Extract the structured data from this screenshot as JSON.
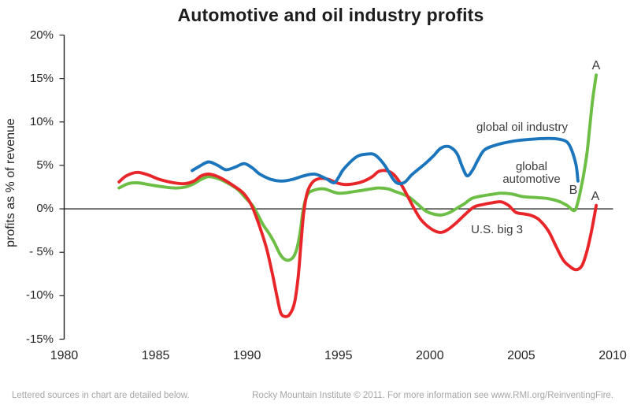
{
  "chart_data": {
    "type": "line",
    "title": "Automotive and oil industry profits",
    "ylabel": "profits as % of revenue",
    "xlabel": "",
    "xlim": [
      1980,
      2010
    ],
    "ylim": [
      -15,
      20
    ],
    "grid": false,
    "legend": "inline-labels",
    "zero_line": true,
    "axis_color": "#231f20",
    "zero_line_color": "#000000",
    "yticks": {
      "values": [
        20,
        15,
        10,
        5,
        0,
        -5,
        -10,
        -15
      ],
      "labels": [
        "20%",
        "15%",
        "10%",
        "5%",
        "0%",
        "- 5%",
        "-10%",
        "-15%"
      ]
    },
    "xticks": {
      "values": [
        1980,
        1985,
        1990,
        1995,
        2000,
        2005,
        2010
      ],
      "labels": [
        "1980",
        "1985",
        "1990",
        "1995",
        "2000",
        "2005",
        "2010"
      ]
    },
    "series": [
      {
        "id": "global-automotive",
        "name": "global automotive",
        "color": "#6cbe45",
        "points": [
          [
            1983.0,
            2.4
          ],
          [
            1983.5,
            2.9
          ],
          [
            1984.0,
            3.0
          ],
          [
            1984.6,
            2.8
          ],
          [
            1985.2,
            2.6
          ],
          [
            1986.0,
            2.4
          ],
          [
            1986.6,
            2.5
          ],
          [
            1987.1,
            2.9
          ],
          [
            1987.5,
            3.4
          ],
          [
            1987.9,
            3.7
          ],
          [
            1988.4,
            3.5
          ],
          [
            1989.0,
            2.9
          ],
          [
            1989.5,
            2.2
          ],
          [
            1989.9,
            1.3
          ],
          [
            1990.3,
            0.4
          ],
          [
            1990.6,
            -0.7
          ],
          [
            1990.9,
            -1.9
          ],
          [
            1991.2,
            -2.8
          ],
          [
            1991.5,
            -3.9
          ],
          [
            1991.8,
            -5.2
          ],
          [
            1992.05,
            -5.8
          ],
          [
            1992.3,
            -5.9
          ],
          [
            1992.55,
            -5.5
          ],
          [
            1992.75,
            -4.4
          ],
          [
            1992.92,
            -2.5
          ],
          [
            1993.08,
            0.0
          ],
          [
            1993.3,
            1.6
          ],
          [
            1993.6,
            2.1
          ],
          [
            1994.2,
            2.3
          ],
          [
            1995.0,
            1.8
          ],
          [
            1995.9,
            2.0
          ],
          [
            1996.8,
            2.3
          ],
          [
            1997.2,
            2.4
          ],
          [
            1997.7,
            2.3
          ],
          [
            1998.1,
            2.0
          ],
          [
            1998.5,
            1.7
          ],
          [
            1998.9,
            1.3
          ],
          [
            1999.3,
            0.6
          ],
          [
            1999.75,
            -0.2
          ],
          [
            2000.2,
            -0.6
          ],
          [
            2000.65,
            -0.7
          ],
          [
            2001.1,
            -0.4
          ],
          [
            2001.5,
            0.1
          ],
          [
            2001.9,
            0.6
          ],
          [
            2002.3,
            1.2
          ],
          [
            2002.9,
            1.5
          ],
          [
            2003.5,
            1.7
          ],
          [
            2003.9,
            1.8
          ],
          [
            2004.5,
            1.7
          ],
          [
            2005.1,
            1.4
          ],
          [
            2005.8,
            1.3
          ],
          [
            2006.4,
            1.2
          ],
          [
            2007.0,
            0.9
          ],
          [
            2007.5,
            0.4
          ],
          [
            2007.9,
            -0.2
          ],
          [
            2008.1,
            0.8
          ],
          [
            2008.3,
            2.7
          ],
          [
            2008.45,
            4.4
          ],
          [
            2008.6,
            6.5
          ],
          [
            2008.75,
            9.5
          ],
          [
            2008.9,
            12.5
          ],
          [
            2009.05,
            14.7
          ],
          [
            2009.1,
            15.4
          ]
        ]
      },
      {
        "id": "us-big-3",
        "name": "U.S. big 3",
        "color": "#e82529",
        "points": [
          [
            1983.0,
            3.1
          ],
          [
            1983.4,
            3.8
          ],
          [
            1984.0,
            4.2
          ],
          [
            1984.6,
            3.9
          ],
          [
            1985.2,
            3.4
          ],
          [
            1986.0,
            3.0
          ],
          [
            1986.6,
            2.9
          ],
          [
            1987.1,
            3.2
          ],
          [
            1987.5,
            3.8
          ],
          [
            1987.9,
            4.0
          ],
          [
            1988.3,
            3.8
          ],
          [
            1988.7,
            3.4
          ],
          [
            1989.3,
            2.6
          ],
          [
            1989.8,
            1.8
          ],
          [
            1990.2,
            0.6
          ],
          [
            1990.5,
            -0.9
          ],
          [
            1990.8,
            -2.7
          ],
          [
            1991.1,
            -4.8
          ],
          [
            1991.4,
            -7.6
          ],
          [
            1991.65,
            -10.2
          ],
          [
            1991.85,
            -12.0
          ],
          [
            1992.1,
            -12.4
          ],
          [
            1992.35,
            -12.1
          ],
          [
            1992.6,
            -10.8
          ],
          [
            1992.8,
            -7.8
          ],
          [
            1992.95,
            -4.0
          ],
          [
            1993.1,
            -0.5
          ],
          [
            1993.3,
            1.9
          ],
          [
            1993.6,
            3.1
          ],
          [
            1994.0,
            3.5
          ],
          [
            1994.45,
            3.4
          ],
          [
            1994.9,
            3.0
          ],
          [
            1995.35,
            2.8
          ],
          [
            1995.9,
            2.9
          ],
          [
            1996.4,
            3.2
          ],
          [
            1996.85,
            3.7
          ],
          [
            1997.2,
            4.3
          ],
          [
            1997.6,
            4.4
          ],
          [
            1998.0,
            4.0
          ],
          [
            1998.4,
            2.9
          ],
          [
            1998.75,
            1.6
          ],
          [
            1999.1,
            0.2
          ],
          [
            1999.5,
            -1.2
          ],
          [
            2000.0,
            -2.2
          ],
          [
            2000.5,
            -2.7
          ],
          [
            2000.9,
            -2.5
          ],
          [
            2001.4,
            -1.7
          ],
          [
            2001.9,
            -0.7
          ],
          [
            2002.4,
            0.2
          ],
          [
            2002.9,
            0.5
          ],
          [
            2003.4,
            0.7
          ],
          [
            2003.9,
            0.8
          ],
          [
            2004.3,
            0.4
          ],
          [
            2004.7,
            -0.4
          ],
          [
            2005.2,
            -0.6
          ],
          [
            2005.6,
            -0.8
          ],
          [
            2006.0,
            -1.3
          ],
          [
            2006.5,
            -2.6
          ],
          [
            2006.9,
            -4.3
          ],
          [
            2007.3,
            -5.9
          ],
          [
            2007.7,
            -6.7
          ],
          [
            2008.0,
            -7.0
          ],
          [
            2008.3,
            -6.6
          ],
          [
            2008.55,
            -5.2
          ],
          [
            2008.8,
            -3.0
          ],
          [
            2009.0,
            -0.8
          ],
          [
            2009.1,
            0.4
          ]
        ]
      },
      {
        "id": "global-oil-industry",
        "name": "global oil industry",
        "color": "#1b75bc",
        "points": [
          [
            1987.0,
            4.4
          ],
          [
            1987.4,
            4.9
          ],
          [
            1987.9,
            5.4
          ],
          [
            1988.4,
            5.0
          ],
          [
            1988.85,
            4.5
          ],
          [
            1989.35,
            4.8
          ],
          [
            1989.85,
            5.2
          ],
          [
            1990.3,
            4.7
          ],
          [
            1990.7,
            4.0
          ],
          [
            1991.3,
            3.4
          ],
          [
            1991.9,
            3.2
          ],
          [
            1992.5,
            3.4
          ],
          [
            1993.1,
            3.8
          ],
          [
            1993.7,
            4.0
          ],
          [
            1994.3,
            3.5
          ],
          [
            1994.75,
            3.0
          ],
          [
            1995.0,
            3.6
          ],
          [
            1995.3,
            4.6
          ],
          [
            1996.0,
            6.0
          ],
          [
            1996.55,
            6.3
          ],
          [
            1997.0,
            6.2
          ],
          [
            1997.5,
            5.1
          ],
          [
            1998.0,
            3.4
          ],
          [
            1998.3,
            2.9
          ],
          [
            1998.65,
            3.1
          ],
          [
            1999.0,
            3.9
          ],
          [
            1999.4,
            4.6
          ],
          [
            1999.8,
            5.3
          ],
          [
            2000.2,
            6.1
          ],
          [
            2000.55,
            6.9
          ],
          [
            2000.9,
            7.2
          ],
          [
            2001.2,
            7.0
          ],
          [
            2001.5,
            6.3
          ],
          [
            2001.8,
            4.7
          ],
          [
            2002.05,
            3.8
          ],
          [
            2002.35,
            4.5
          ],
          [
            2002.65,
            5.7
          ],
          [
            2003.0,
            6.8
          ],
          [
            2003.7,
            7.4
          ],
          [
            2004.6,
            7.8
          ],
          [
            2005.5,
            8.0
          ],
          [
            2006.5,
            8.1
          ],
          [
            2007.1,
            8.0
          ],
          [
            2007.5,
            7.7
          ],
          [
            2007.75,
            6.8
          ],
          [
            2008.0,
            5.0
          ],
          [
            2008.1,
            3.2
          ]
        ]
      }
    ]
  },
  "annotations": {
    "oil_label": "global oil industry",
    "auto_label_line1": "global",
    "auto_label_line2": "automotive",
    "big3_label": "U.S. big 3",
    "a_green": "A",
    "b_blue": "B",
    "a_red": "A"
  },
  "footer": {
    "left": "Lettered sources in chart are detailed below.",
    "right": "Rocky Mountain Institute © 2011. For more information see www.RMI.org/ReinventingFire."
  }
}
